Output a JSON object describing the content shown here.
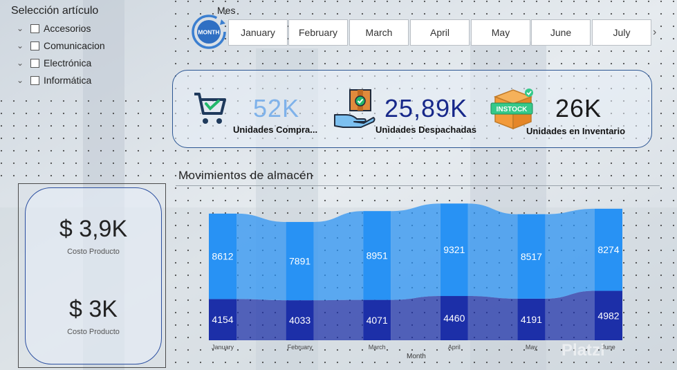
{
  "slicer": {
    "title": "Selección artículo",
    "items": [
      {
        "label": "Accesorios"
      },
      {
        "label": "Comunicacion"
      },
      {
        "label": "Electrónica"
      },
      {
        "label": "Informática"
      }
    ]
  },
  "month_slicer": {
    "label": "Mes",
    "icon_text": "MONTH",
    "months": [
      "January",
      "February",
      "March",
      "April",
      "May",
      "June",
      "July"
    ]
  },
  "kpis": [
    {
      "value": "52K",
      "label": "Unidades Compra...",
      "icon": "shopping-cart-icon"
    },
    {
      "value": "25,89K",
      "label": "Unidades Despachadas",
      "icon": "package-delivery-icon"
    },
    {
      "value": "26K",
      "label": "Unidades en Inventario",
      "icon": "in-stock-box-icon",
      "badge": "INSTOCK"
    }
  ],
  "costs": [
    {
      "value": "$ 3,9K",
      "label": "Costo Producto"
    },
    {
      "value": "$ 3K",
      "label": "Costo Producto"
    }
  ],
  "chart": {
    "title": "Movimientos de almacén",
    "xlabel": "Month"
  },
  "colors": {
    "top_series": "#2892f4",
    "bottom_series": "#1c2fa8",
    "accent": "#2b5592"
  },
  "watermark": "Platzi",
  "chart_data": {
    "type": "bar",
    "stacked": true,
    "categories": [
      "January",
      "February",
      "March",
      "April",
      "May",
      "June"
    ],
    "series": [
      {
        "values": [
          4154,
          4033,
          4071,
          4460,
          4191,
          4982
        ]
      },
      {
        "values": [
          8612,
          7891,
          8951,
          9321,
          8517,
          8274
        ]
      }
    ],
    "xlabel": "Month",
    "grid": false
  }
}
